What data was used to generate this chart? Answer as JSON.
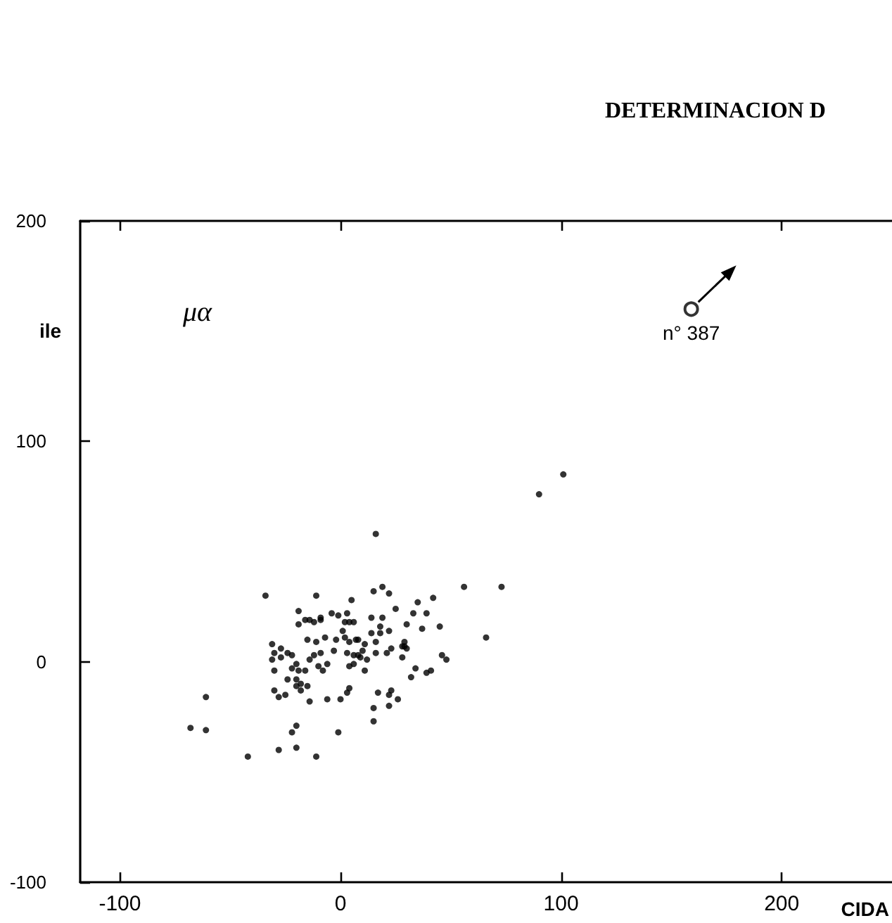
{
  "chart_data": {
    "type": "scatter",
    "title": "DETERMINACION D",
    "xlabel": "CIDA",
    "ylabel": "ile",
    "xlim": [
      -118,
      250
    ],
    "xticks": [
      -100,
      0,
      100,
      200
    ],
    "ylim": [
      -100,
      200
    ],
    "yticks": [
      200,
      100,
      0,
      -100
    ],
    "grid": false,
    "marker": "circle",
    "annotations": [
      "μα",
      {
        "text": "n° 387",
        "x": 159,
        "y": 160
      }
    ],
    "series": [
      {
        "color": "#000000",
        "x": [
          -34,
          -11,
          5,
          -19,
          -16,
          -14,
          -12,
          -9,
          -9,
          -19,
          -4,
          -1,
          3,
          2,
          4,
          6,
          1,
          -15,
          -11,
          -7,
          -2,
          2,
          4,
          7,
          -31,
          -27,
          -30,
          -24,
          -27,
          -22,
          -31,
          -14,
          -12,
          -9,
          -3,
          3,
          6,
          -20,
          -22,
          -19,
          -16,
          -10,
          -6,
          -8,
          4,
          6,
          -30,
          -24,
          -20,
          -18,
          -20,
          -15,
          -18,
          -30,
          -28,
          -25,
          -14,
          -6,
          0,
          3,
          4,
          -61,
          -68,
          -61,
          -20,
          -22,
          -1,
          -28,
          -20,
          -42,
          -11,
          16,
          15,
          19,
          22,
          42,
          56,
          25,
          35,
          33,
          39,
          30,
          37,
          45,
          14,
          19,
          18,
          22,
          14,
          18,
          8,
          11,
          16,
          10,
          16,
          21,
          23,
          28,
          29,
          29,
          30,
          8,
          9,
          12,
          11,
          28,
          46,
          48,
          66,
          34,
          32,
          39,
          41,
          17,
          23,
          22,
          26,
          15,
          22,
          15,
          73,
          90,
          101
        ],
        "values": [
          30,
          30,
          28,
          23,
          19,
          19,
          18,
          19,
          20,
          17,
          22,
          21,
          22,
          18,
          18,
          18,
          14,
          10,
          9,
          11,
          10,
          11,
          9,
          10,
          8,
          6,
          4,
          4,
          2,
          3,
          1,
          1,
          3,
          4,
          5,
          4,
          3,
          -1,
          -3,
          -4,
          -4,
          -2,
          -1,
          -4,
          -2,
          -1,
          -4,
          -8,
          -8,
          -10,
          -11,
          -11,
          -13,
          -13,
          -16,
          -15,
          -18,
          -17,
          -17,
          -14,
          -12,
          -16,
          -30,
          -31,
          -29,
          -32,
          -32,
          -40,
          -39,
          -43,
          -43,
          58,
          32,
          34,
          31,
          29,
          34,
          24,
          27,
          22,
          22,
          17,
          15,
          16,
          20,
          20,
          16,
          14,
          13,
          13,
          10,
          8,
          9,
          5,
          4,
          4,
          6,
          7,
          9,
          7,
          6,
          3,
          2,
          1,
          -4,
          2,
          3,
          1,
          11,
          -3,
          -7,
          -5,
          -4,
          -14,
          -13,
          -15,
          -17,
          -21,
          -20,
          -27,
          34,
          76,
          85
        ]
      },
      {
        "color": "#000000",
        "x": [
          159
        ],
        "values": [
          160
        ]
      }
    ]
  }
}
